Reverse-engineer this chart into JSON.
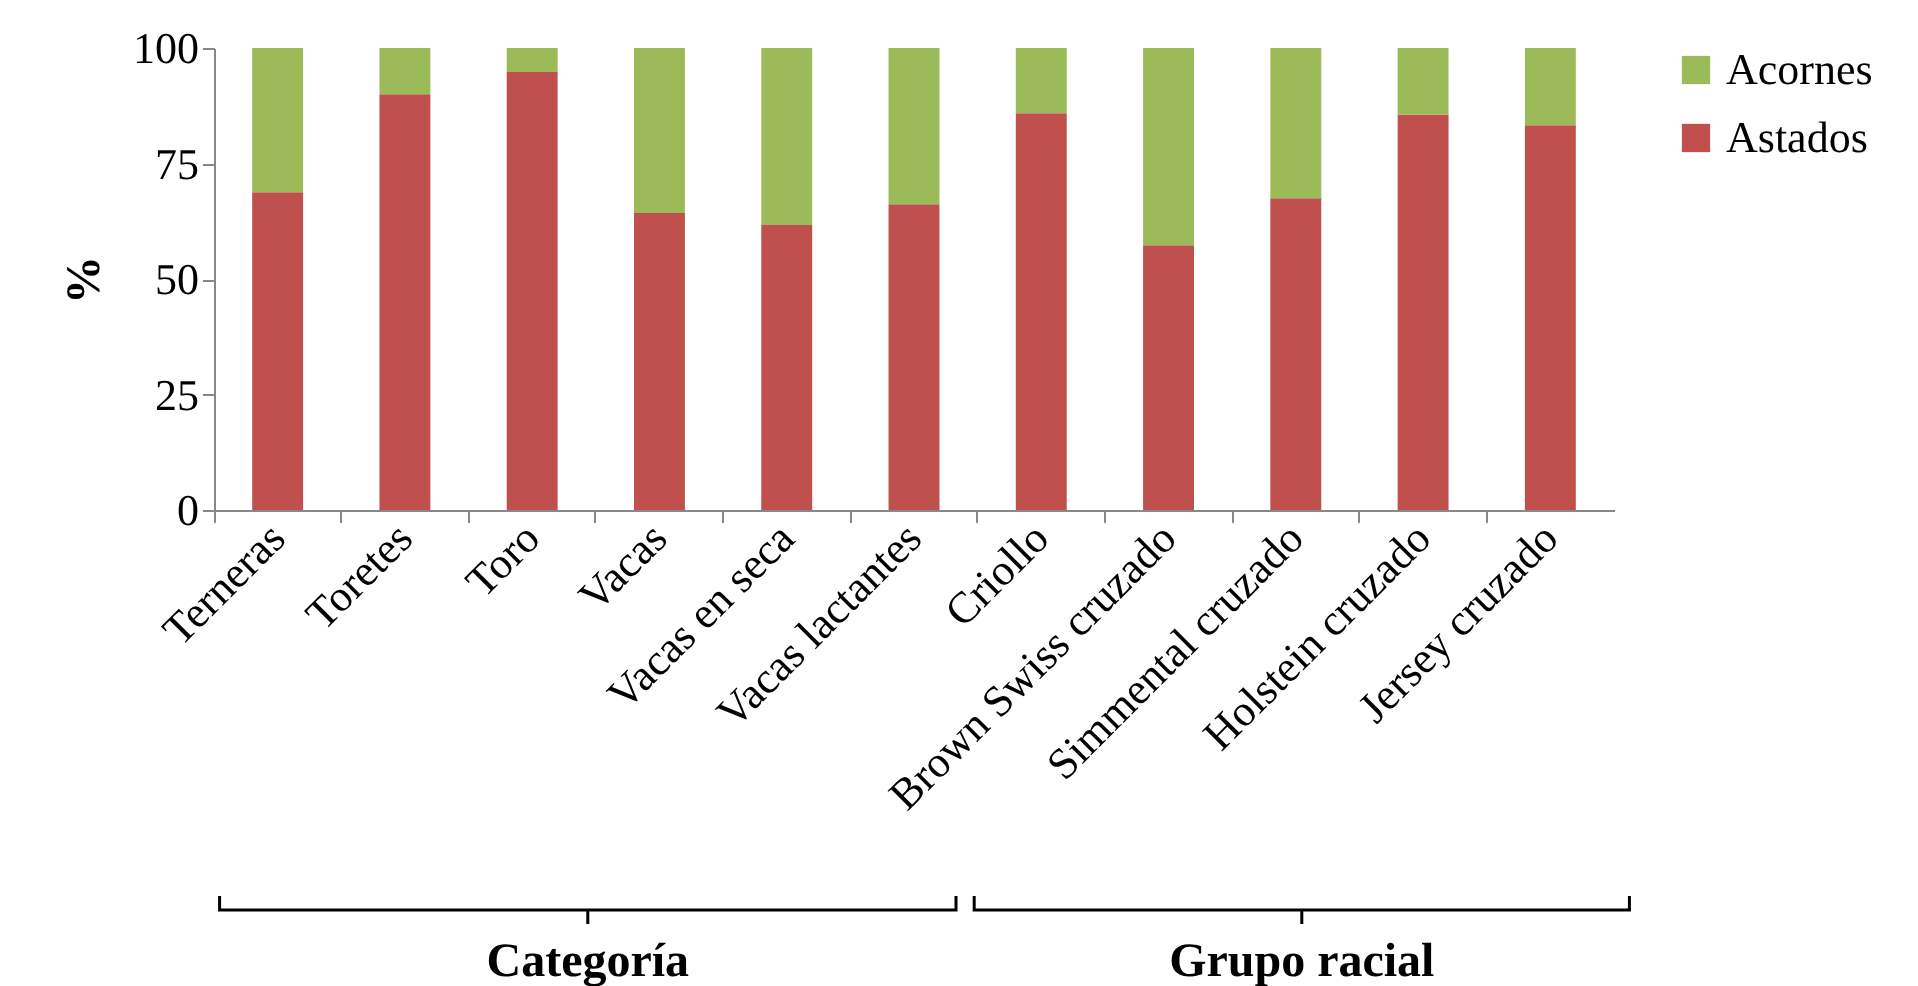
{
  "chart_data": {
    "type": "bar",
    "stacked": true,
    "ylabel": "%",
    "categories": [
      "Terneras",
      "Toretes",
      "Toro",
      "Vacas",
      "Vacas en seca",
      "Vacas lactantes",
      "Criollo",
      "Brown Swiss cruzado",
      "Simmental cruzado",
      "Holstein cruzado",
      "Jersey cruzado"
    ],
    "series": [
      {
        "name": "Astados",
        "color": "#c0504d",
        "values": [
          68.8,
          90.0,
          94.8,
          64.3,
          61.7,
          66.2,
          85.9,
          57.3,
          67.5,
          85.6,
          83.3
        ]
      },
      {
        "name": "Acornes",
        "color": "#9bbb59",
        "values": [
          31.2,
          10.0,
          5.2,
          35.7,
          38.3,
          33.8,
          14.1,
          42.7,
          32.5,
          14.4,
          16.7
        ]
      }
    ],
    "ylim": [
      0,
      100
    ],
    "yticks": [
      0,
      25,
      50,
      75,
      100
    ],
    "legend": "right",
    "annotations": [
      "Categoría",
      "Grupo racial"
    ]
  }
}
